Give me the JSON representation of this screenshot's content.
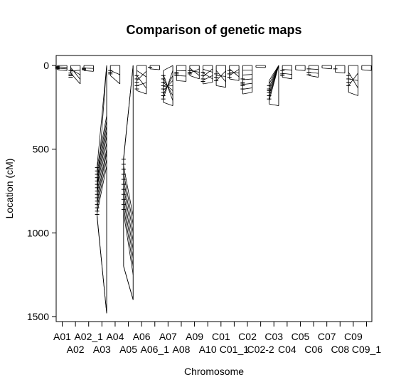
{
  "chart_data": {
    "type": "genetic-map-comparison",
    "title": "Comparison of genetic maps",
    "xlabel": "Chromosome",
    "ylabel": "Location (cM)",
    "ylim": [
      1530,
      -60
    ],
    "y_ticks": [
      0,
      500,
      1000,
      1500
    ],
    "y_reversed": true,
    "categories": [
      "A01",
      "A02",
      "A02_1",
      "A03",
      "A04",
      "A05",
      "A06",
      "A06_1",
      "A07",
      "A08",
      "A09",
      "A10",
      "C01",
      "C01_1",
      "C02",
      "C02-2",
      "C03",
      "C04",
      "C05",
      "C06",
      "C07",
      "C08",
      "C09",
      "C09_1"
    ],
    "tick_labels_row1": [
      "A01",
      "A02_1",
      "A04",
      "A06",
      "A07",
      "A09",
      "C01",
      "C02",
      "C03",
      "C05",
      "C07",
      "C09"
    ],
    "tick_labels_row2": [
      "A02",
      "A03",
      "A05",
      "A06_1",
      "A08",
      "A10",
      "C01_1",
      "C02-2",
      "C04",
      "C06",
      "C08",
      "C09_1"
    ],
    "chromosomes": [
      {
        "name": "A01",
        "left": [
          0,
          25
        ],
        "right": [
          0,
          30
        ],
        "markers": [
          5,
          10,
          15,
          20
        ],
        "links": 3
      },
      {
        "name": "A02",
        "left": [
          0,
          45
        ],
        "right": [
          0,
          110
        ],
        "markers": [
          30,
          45,
          55,
          60,
          70
        ],
        "links": 4
      },
      {
        "name": "A02_1",
        "left": [
          0,
          30
        ],
        "right": [
          0,
          35
        ],
        "markers": [
          15,
          20,
          25
        ],
        "links": 2
      },
      {
        "name": "A03",
        "left": [
          600,
          910
        ],
        "right": [
          0,
          1480
        ],
        "markers": [
          610,
          630,
          650,
          670,
          690,
          710,
          730,
          750,
          770,
          790,
          810,
          830,
          850,
          870,
          890
        ],
        "links": 12,
        "link_pairs": [
          [
            610,
            300
          ],
          [
            640,
            330
          ],
          [
            670,
            360
          ],
          [
            700,
            390
          ],
          [
            730,
            420
          ],
          [
            760,
            460
          ],
          [
            790,
            500
          ],
          [
            820,
            520
          ],
          [
            850,
            560
          ],
          [
            880,
            600
          ],
          [
            900,
            1480
          ],
          [
            760,
            0
          ]
        ]
      },
      {
        "name": "A04",
        "left": [
          0,
          60
        ],
        "right": [
          0,
          110
        ],
        "markers": [
          30,
          40,
          50
        ],
        "links": 2
      },
      {
        "name": "A05",
        "left": [
          550,
          1200
        ],
        "right": [
          0,
          1400
        ],
        "markers": [
          560,
          590,
          620,
          650,
          680,
          710,
          740,
          770,
          800,
          830,
          860
        ],
        "links": 10,
        "link_pairs": [
          [
            560,
            0
          ],
          [
            600,
            900
          ],
          [
            640,
            950
          ],
          [
            680,
            1000
          ],
          [
            720,
            1050
          ],
          [
            760,
            1100
          ],
          [
            800,
            1150
          ],
          [
            840,
            1200
          ],
          [
            880,
            1250
          ],
          [
            1200,
            1400
          ]
        ]
      },
      {
        "name": "A06",
        "left": [
          0,
          150
        ],
        "right": [
          0,
          170
        ],
        "markers": [
          60,
          80,
          100,
          120,
          140
        ],
        "links": 5
      },
      {
        "name": "A06_1",
        "left": [
          0,
          20
        ],
        "right": [
          0,
          25
        ],
        "markers": [
          10
        ],
        "links": 1
      },
      {
        "name": "A07",
        "left": [
          30,
          220
        ],
        "right": [
          0,
          240
        ],
        "markers": [
          60,
          80,
          100,
          120,
          140,
          160,
          180,
          200
        ],
        "links": 8
      },
      {
        "name": "A08",
        "left": [
          0,
          90
        ],
        "right": [
          0,
          95
        ],
        "markers": [
          40,
          50,
          60
        ],
        "links": 3
      },
      {
        "name": "A09",
        "left": [
          0,
          60
        ],
        "right": [
          0,
          80
        ],
        "markers": [
          30,
          40,
          50
        ],
        "links": 4
      },
      {
        "name": "A10",
        "left": [
          0,
          110
        ],
        "right": [
          0,
          100
        ],
        "markers": [
          40,
          60,
          80,
          95
        ],
        "links": 5
      },
      {
        "name": "C01",
        "left": [
          0,
          120
        ],
        "right": [
          0,
          130
        ],
        "markers": [
          50,
          70,
          90
        ],
        "links": 4
      },
      {
        "name": "C01_1",
        "left": [
          0,
          80
        ],
        "right": [
          0,
          90
        ],
        "markers": [
          30,
          50,
          70
        ],
        "links": 4
      },
      {
        "name": "C02",
        "left": [
          0,
          170
        ],
        "right": [
          0,
          160
        ],
        "markers": [
          80,
          100,
          110,
          120,
          140
        ],
        "links": 6
      },
      {
        "name": "C02-2",
        "left": [
          0,
          10
        ],
        "right": [
          0,
          12
        ],
        "markers": [],
        "links": 1
      },
      {
        "name": "C03",
        "left": [
          90,
          230
        ],
        "right": [
          0,
          240
        ],
        "markers": [
          120,
          140,
          150,
          160,
          180,
          200
        ],
        "links": 7
      },
      {
        "name": "C04",
        "left": [
          0,
          70
        ],
        "right": [
          0,
          80
        ],
        "markers": [
          30,
          50,
          60
        ],
        "links": 3
      },
      {
        "name": "C05",
        "left": [
          0,
          25
        ],
        "right": [
          0,
          30
        ],
        "markers": [],
        "links": 1
      },
      {
        "name": "C06",
        "left": [
          0,
          60
        ],
        "right": [
          0,
          70
        ],
        "markers": [
          20,
          40,
          55
        ],
        "links": 3
      },
      {
        "name": "C07",
        "left": [
          0,
          15
        ],
        "right": [
          0,
          20
        ],
        "markers": [],
        "links": 1
      },
      {
        "name": "C08",
        "left": [
          0,
          40
        ],
        "right": [
          0,
          45
        ],
        "markers": [
          20
        ],
        "links": 1
      },
      {
        "name": "C09",
        "left": [
          0,
          160
        ],
        "right": [
          0,
          180
        ],
        "markers": [
          60,
          80,
          100,
          120
        ],
        "links": 4
      },
      {
        "name": "C09_1",
        "left": [
          0,
          25
        ],
        "right": [
          0,
          30
        ],
        "markers": [],
        "links": 1
      }
    ],
    "grid": false
  }
}
